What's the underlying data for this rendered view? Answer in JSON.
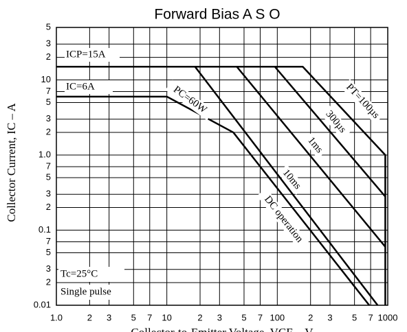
{
  "chart_data": {
    "type": "line",
    "title": "Forward Bias A S O",
    "y_label": "Collector Current, IC – A",
    "x_label": "Collector-to-Emitter Voltage, VCE – V",
    "log_x": true,
    "log_y": true,
    "grid": true,
    "color": "#000000",
    "xlim": [
      1,
      1000
    ],
    "ylim": [
      0.01,
      50
    ],
    "xticks": [
      {
        "value": 1,
        "label": "1.0"
      },
      2,
      3,
      5,
      7,
      10,
      {
        "value": 20,
        "label": "2"
      },
      {
        "value": 30,
        "label": "3"
      },
      {
        "value": 50,
        "label": "5"
      },
      {
        "value": 70,
        "label": "7"
      },
      100,
      {
        "value": 200,
        "label": "2"
      },
      {
        "value": 300,
        "label": "3"
      },
      {
        "value": 500,
        "label": "5"
      },
      {
        "value": 700,
        "label": "7"
      },
      1000
    ],
    "yticks": [
      0.01,
      {
        "value": 0.02,
        "label": "2"
      },
      {
        "value": 0.03,
        "label": "3"
      },
      {
        "value": 0.05,
        "label": "5"
      },
      {
        "value": 0.07,
        "label": "7"
      },
      0.1,
      {
        "value": 0.2,
        "label": "2"
      },
      {
        "value": 0.3,
        "label": "3"
      },
      {
        "value": 0.5,
        "label": "5"
      },
      {
        "value": 0.7,
        "label": "7"
      },
      {
        "value": 1,
        "label": "1.0"
      },
      2,
      3,
      5,
      7,
      10,
      {
        "value": 20,
        "label": "2"
      },
      {
        "value": 30,
        "label": "3"
      },
      {
        "value": 50,
        "label": "5"
      }
    ],
    "series": [
      {
        "name": "PT=100µs",
        "x": [
          1,
          170,
          950,
          950
        ],
        "values": [
          15,
          15,
          1,
          0.01
        ]
      },
      {
        "name": "300µs",
        "x": [
          95,
          950
        ],
        "values": [
          15,
          0.28
        ]
      },
      {
        "name": "1ms",
        "x": [
          43,
          950
        ],
        "values": [
          15,
          0.06
        ]
      },
      {
        "name": "10ms",
        "x": [
          18,
          810
        ],
        "values": [
          15,
          0.01
        ]
      },
      {
        "name": "DC operation",
        "x": [
          1,
          10,
          40,
          680
        ],
        "values": [
          6,
          6,
          2,
          0.01
        ]
      }
    ],
    "annotations": [
      "ICP=15A",
      "IC=6A",
      "PC=60W",
      "Tc=25°C",
      "Single pulse"
    ]
  }
}
